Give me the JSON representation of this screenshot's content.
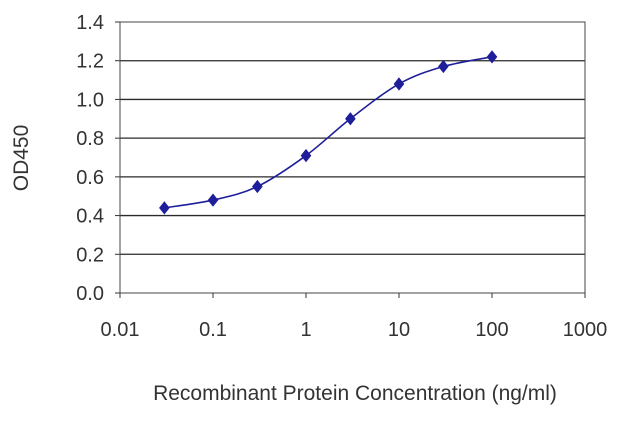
{
  "chart_data": {
    "type": "line",
    "title": "",
    "xlabel": "Recombinant Protein Concentration (ng/ml)",
    "ylabel": "OD450",
    "x_scale": "log",
    "xlim": [
      0.01,
      1000
    ],
    "ylim": [
      0.0,
      1.4
    ],
    "x_ticks": [
      "0.01",
      "0.1",
      "1",
      "10",
      "100",
      "1000"
    ],
    "y_ticks": [
      "0.0",
      "0.2",
      "0.4",
      "0.6",
      "0.8",
      "1.0",
      "1.2",
      "1.4"
    ],
    "grid": "horizontal",
    "legend": "none",
    "series": [
      {
        "name": "",
        "x": [
          0.03,
          0.1,
          0.3,
          1,
          3,
          10,
          30,
          100
        ],
        "y": [
          0.44,
          0.48,
          0.55,
          0.71,
          0.9,
          1.08,
          1.17,
          1.22
        ],
        "color": "#1e1e9a"
      }
    ]
  }
}
